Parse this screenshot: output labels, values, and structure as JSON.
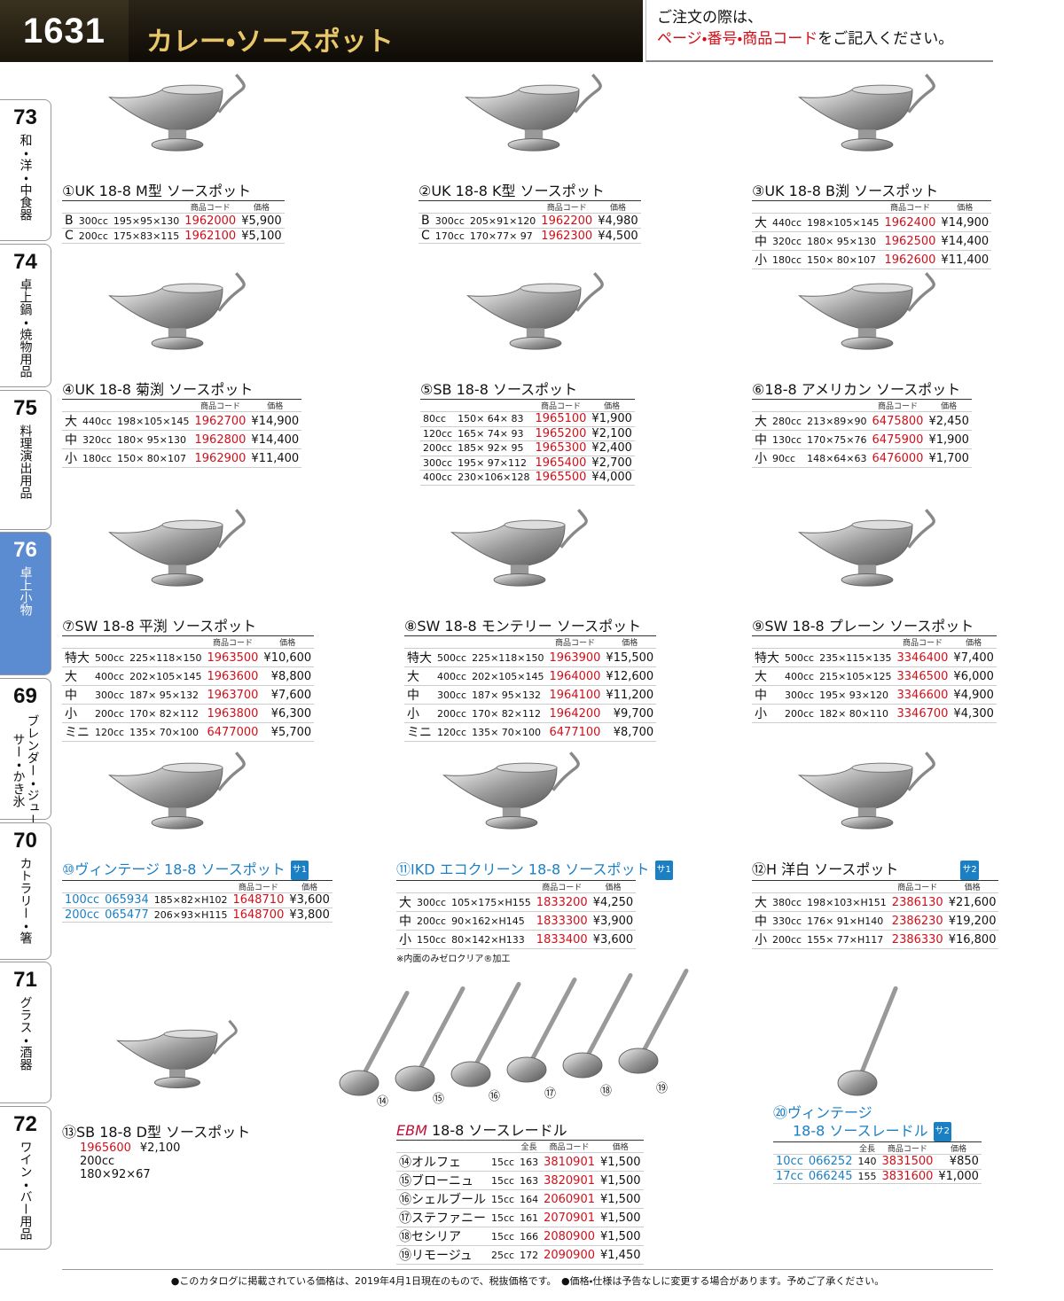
{
  "header": {
    "page": "1631",
    "title": "カレー・ソースポット",
    "note_line1": "ご注文の際は、",
    "note_red": "ページ・番号・商品コード",
    "note_black": "をご記入ください。"
  },
  "tabs": [
    {
      "num": "73",
      "label": "和・洋・中食器"
    },
    {
      "num": "74",
      "label": "卓上鍋・焼物用品"
    },
    {
      "num": "75",
      "label": "料理演出用品"
    },
    {
      "num": "76",
      "label": "卓上小物"
    },
    {
      "num": "69",
      "label": "ブレンダー・ジューサー・かき氷"
    },
    {
      "num": "70",
      "label": "カトラリー・箸"
    },
    {
      "num": "71",
      "label": "グラス・酒器"
    },
    {
      "num": "72",
      "label": "ワイン・バー用品"
    }
  ],
  "products": [
    {
      "title": "①UK 18-8 M型 ソースポット",
      "header": [
        "商品コード",
        "価格"
      ],
      "rows": [
        [
          "B",
          "300cc",
          "195×95×130",
          "1962000",
          "¥5,900"
        ],
        [
          "C",
          "200cc",
          "175×83×115",
          "1962100",
          "¥5,100"
        ]
      ]
    },
    {
      "title": "②UK 18-8 K型 ソースポット",
      "header": [
        "商品コード",
        "価格"
      ],
      "rows": [
        [
          "B",
          "300cc",
          "205×91×120",
          "1962200",
          "¥4,980"
        ],
        [
          "C",
          "170cc",
          "170×77× 97",
          "1962300",
          "¥4,500"
        ]
      ]
    },
    {
      "title": "③UK 18-8 B渕 ソースポット",
      "header": [
        "商品コード",
        "価格"
      ],
      "rows": [
        [
          "大",
          "440cc",
          "198×105×145",
          "1962400",
          "¥14,900"
        ],
        [
          "中",
          "320cc",
          "180× 95×130",
          "1962500",
          "¥14,400"
        ],
        [
          "小",
          "180cc",
          "150× 80×107",
          "1962600",
          "¥11,400"
        ]
      ]
    },
    {
      "title": "④UK 18-8 菊渕 ソースポット",
      "header": [
        "商品コード",
        "価格"
      ],
      "rows": [
        [
          "大",
          "440cc",
          "198×105×145",
          "1962700",
          "¥14,900"
        ],
        [
          "中",
          "320cc",
          "180× 95×130",
          "1962800",
          "¥14,400"
        ],
        [
          "小",
          "180cc",
          "150× 80×107",
          "1962900",
          "¥11,400"
        ]
      ]
    },
    {
      "title": "⑤SB 18-8 ソースポット",
      "header": [
        "商品コード",
        "価格"
      ],
      "rows": [
        [
          "80cc",
          "150× 64× 83",
          "1965100",
          "¥1,900"
        ],
        [
          "120cc",
          "165× 74× 93",
          "1965200",
          "¥2,100"
        ],
        [
          "200cc",
          "185× 92× 95",
          "1965300",
          "¥2,400"
        ],
        [
          "300cc",
          "195× 97×112",
          "1965400",
          "¥2,700"
        ],
        [
          "400cc",
          "230×106×128",
          "1965500",
          "¥4,000"
        ]
      ]
    },
    {
      "title": "⑥18-8 アメリカン ソースポット",
      "header": [
        "商品コード",
        "価格"
      ],
      "rows": [
        [
          "大",
          "280cc",
          "213×89×90",
          "6475800",
          "¥2,450"
        ],
        [
          "中",
          "130cc",
          "170×75×76",
          "6475900",
          "¥1,900"
        ],
        [
          "小",
          "90cc",
          "148×64×63",
          "6476000",
          "¥1,700"
        ]
      ]
    },
    {
      "title": "⑦SW 18-8 平渕 ソースポット",
      "header": [
        "商品コード",
        "価格"
      ],
      "rows": [
        [
          "特大",
          "500cc",
          "225×118×150",
          "1963500",
          "¥10,600"
        ],
        [
          "大",
          "400cc",
          "202×105×145",
          "1963600",
          "¥8,800"
        ],
        [
          "中",
          "300cc",
          "187× 95×132",
          "1963700",
          "¥7,600"
        ],
        [
          "小",
          "200cc",
          "170× 82×112",
          "1963800",
          "¥6,300"
        ],
        [
          "ミニ",
          "120cc",
          "135× 70×100",
          "6477000",
          "¥5,700"
        ]
      ]
    },
    {
      "title": "⑧SW 18-8 モンテリー ソースポット",
      "header": [
        "商品コード",
        "価格"
      ],
      "rows": [
        [
          "特大",
          "500cc",
          "225×118×150",
          "1963900",
          "¥15,500"
        ],
        [
          "大",
          "400cc",
          "202×105×145",
          "1964000",
          "¥12,600"
        ],
        [
          "中",
          "300cc",
          "187× 95×132",
          "1964100",
          "¥11,200"
        ],
        [
          "小",
          "200cc",
          "170× 82×112",
          "1964200",
          "¥9,700"
        ],
        [
          "ミニ",
          "120cc",
          "135× 70×100",
          "6477100",
          "¥8,700"
        ]
      ]
    },
    {
      "title": "⑨SW 18-8 プレーン ソースポット",
      "header": [
        "商品コード",
        "価格"
      ],
      "rows": [
        [
          "特大",
          "500cc",
          "235×115×135",
          "3346400",
          "¥7,400"
        ],
        [
          "大",
          "400cc",
          "215×105×125",
          "3346500",
          "¥6,000"
        ],
        [
          "中",
          "300cc",
          "195× 93×120",
          "3346600",
          "¥4,900"
        ],
        [
          "小",
          "200cc",
          "182× 80×110",
          "3346700",
          "¥4,300"
        ]
      ]
    },
    {
      "title": "⑩ヴィンテージ 18-8 ソースポット",
      "badge": "サ1",
      "header": [
        "商品コード",
        "価格"
      ],
      "rows": [
        [
          "100cc",
          "065934",
          "185×82×H102",
          "1648710",
          "¥3,600"
        ],
        [
          "200cc",
          "065477",
          "206×93×H115",
          "1648700",
          "¥3,800"
        ]
      ]
    },
    {
      "title": "⑪IKD エコクリーン 18-8 ソースポット",
      "badge": "サ1",
      "header": [
        "商品コード",
        "価格"
      ],
      "rows": [
        [
          "大",
          "300cc",
          "105×175×H155",
          "1833200",
          "¥4,250"
        ],
        [
          "中",
          "200cc",
          "90×162×H145",
          "1833300",
          "¥3,900"
        ],
        [
          "小",
          "150cc",
          "80×142×H133",
          "1833400",
          "¥3,600"
        ]
      ],
      "note": "※内面のみゼロクリア®加工"
    },
    {
      "title": "⑫H 洋白 ソースポット",
      "badge": "サ2",
      "header": [
        "商品コード",
        "価格"
      ],
      "rows": [
        [
          "大",
          "380cc",
          "198×103×H151",
          "2386130",
          "¥21,600"
        ],
        [
          "中",
          "330cc",
          "176× 91×H140",
          "2386230",
          "¥19,200"
        ],
        [
          "小",
          "200cc",
          "155× 77×H117",
          "2386330",
          "¥16,800"
        ]
      ]
    },
    {
      "title": "⑬SB 18-8 D型 ソースポット",
      "rows": [
        [
          "1965600",
          "¥2,100"
        ],
        [
          "200cc"
        ],
        [
          "180×92×67"
        ]
      ]
    },
    {
      "brand": "EBM",
      "title": "18-8 ソースレードル",
      "image_labels": [
        "⑭",
        "⑮",
        "⑯",
        "⑰",
        "⑱",
        "⑲"
      ],
      "header": [
        "全長",
        "商品コード",
        "価格"
      ],
      "rows": [
        [
          "⑭オルフェ",
          "15cc",
          "163",
          "3810901",
          "¥1,500"
        ],
        [
          "⑮ブローニュ",
          "15cc",
          "163",
          "3820901",
          "¥1,500"
        ],
        [
          "⑯シェルブール",
          "15cc",
          "164",
          "2060901",
          "¥1,500"
        ],
        [
          "⑰ステファニー",
          "15cc",
          "161",
          "2070901",
          "¥1,500"
        ],
        [
          "⑱セシリア",
          "15cc",
          "166",
          "2080900",
          "¥1,500"
        ],
        [
          "⑲リモージュ",
          "25cc",
          "172",
          "2090900",
          "¥1,450"
        ]
      ]
    },
    {
      "title_lines": [
        "⑳ヴィンテージ",
        "18-8 ソースレードル"
      ],
      "badge": "サ2",
      "header": [
        "全長",
        "商品コード",
        "価格"
      ],
      "rows": [
        [
          "10cc",
          "066252",
          "140",
          "3831500",
          "¥850"
        ],
        [
          "17cc",
          "066245",
          "155",
          "3831600",
          "¥1,000"
        ]
      ]
    }
  ],
  "footer": "●このカタログに掲載されている価格は、2019年4月1日現在のもので、税抜価格です。　●価格・仕様は予告なしに変更する場合があります。予めご了承ください。"
}
